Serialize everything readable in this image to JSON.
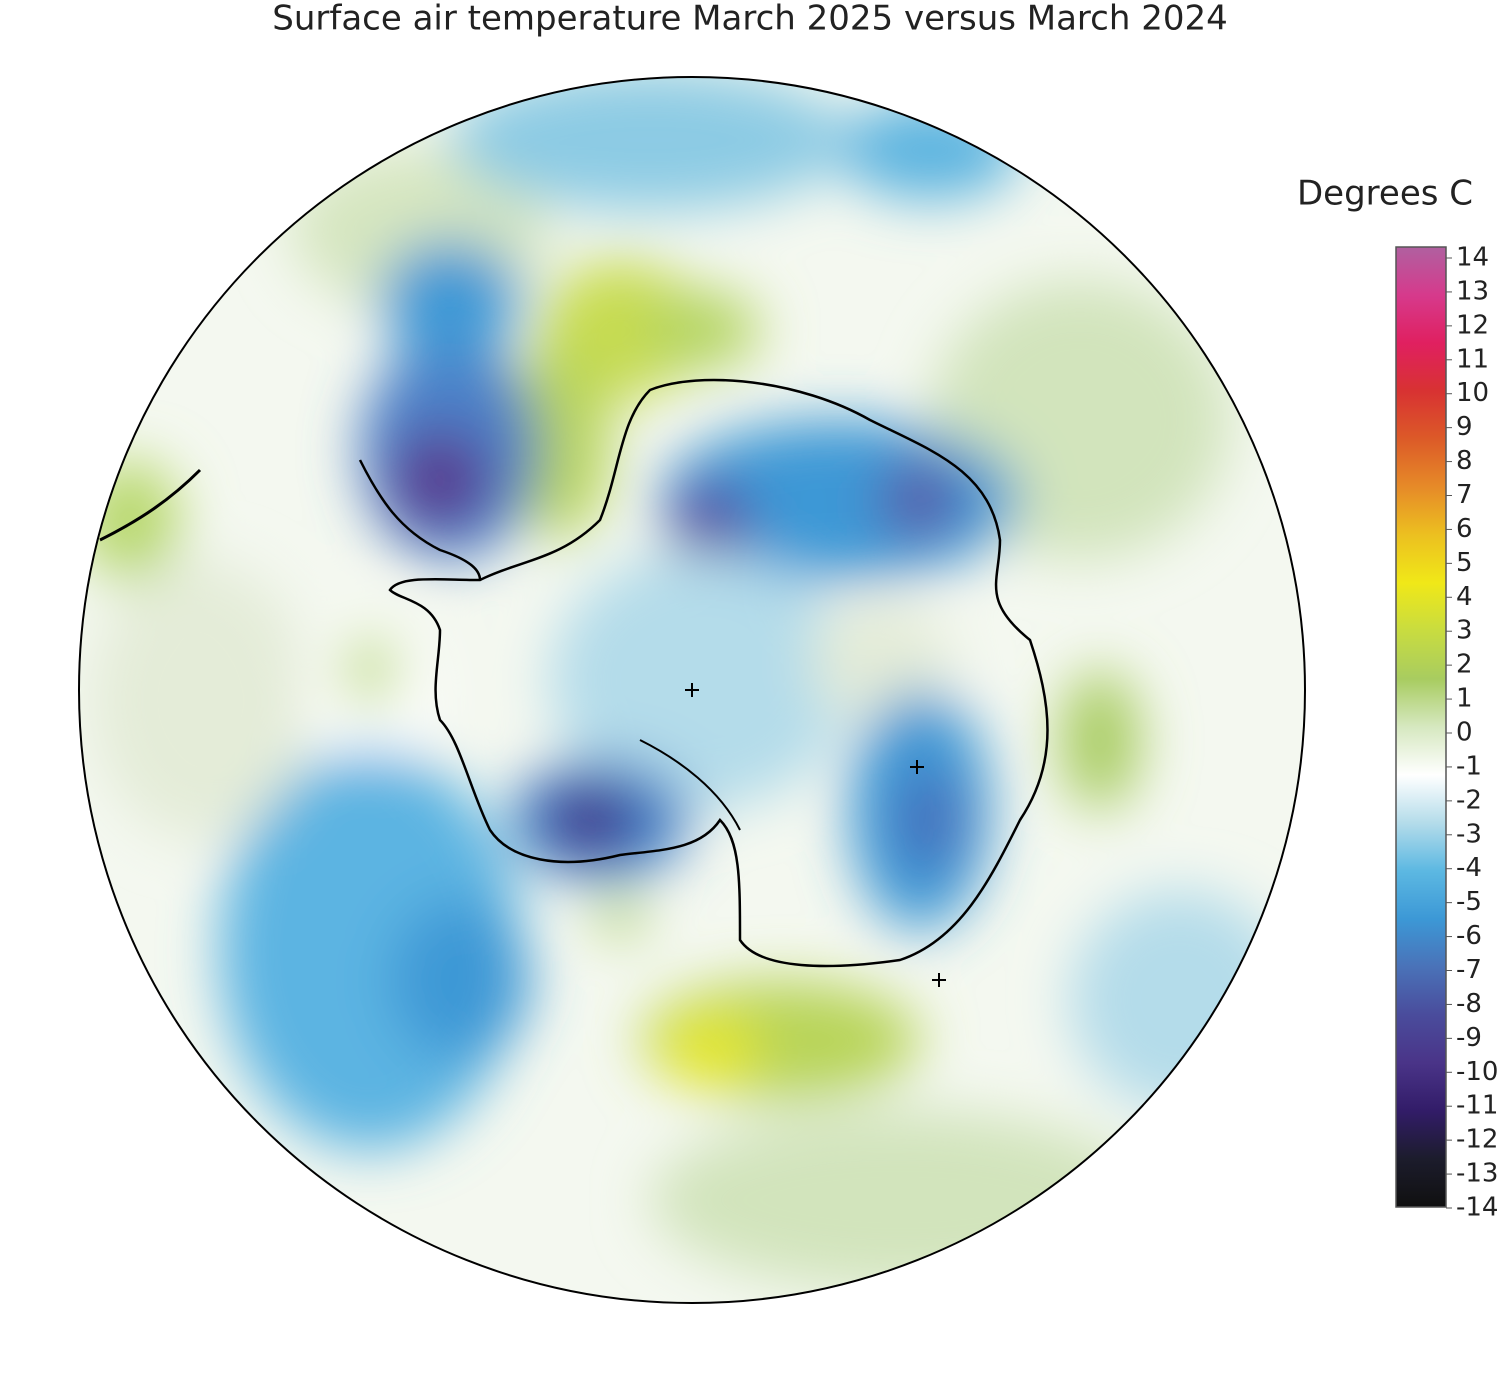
{
  "title": "Surface air temperature March 2025 versus March 2024",
  "colorbar": {
    "label": "Degrees C",
    "ticks": [
      14,
      13,
      12,
      11,
      10,
      9,
      8,
      7,
      6,
      5,
      4,
      3,
      2,
      1,
      0,
      -1,
      -2,
      -3,
      -4,
      -5,
      -6,
      -7,
      -8,
      -9,
      -10,
      -11,
      -12,
      -13,
      -14
    ],
    "colors": [
      "#b060a0",
      "#d63a8c",
      "#e02060",
      "#d83232",
      "#dc5a28",
      "#e68a28",
      "#ecc020",
      "#f0e818",
      "#c8dc40",
      "#a8cc60",
      "#d6e8c0",
      "#ffffff",
      "#b4dcea",
      "#5cb8e2",
      "#3c98d6",
      "#4a72b8",
      "#4a4c9c",
      "#4a3488",
      "#321c68",
      "#1c1c2c",
      "#101010"
    ]
  }
}
